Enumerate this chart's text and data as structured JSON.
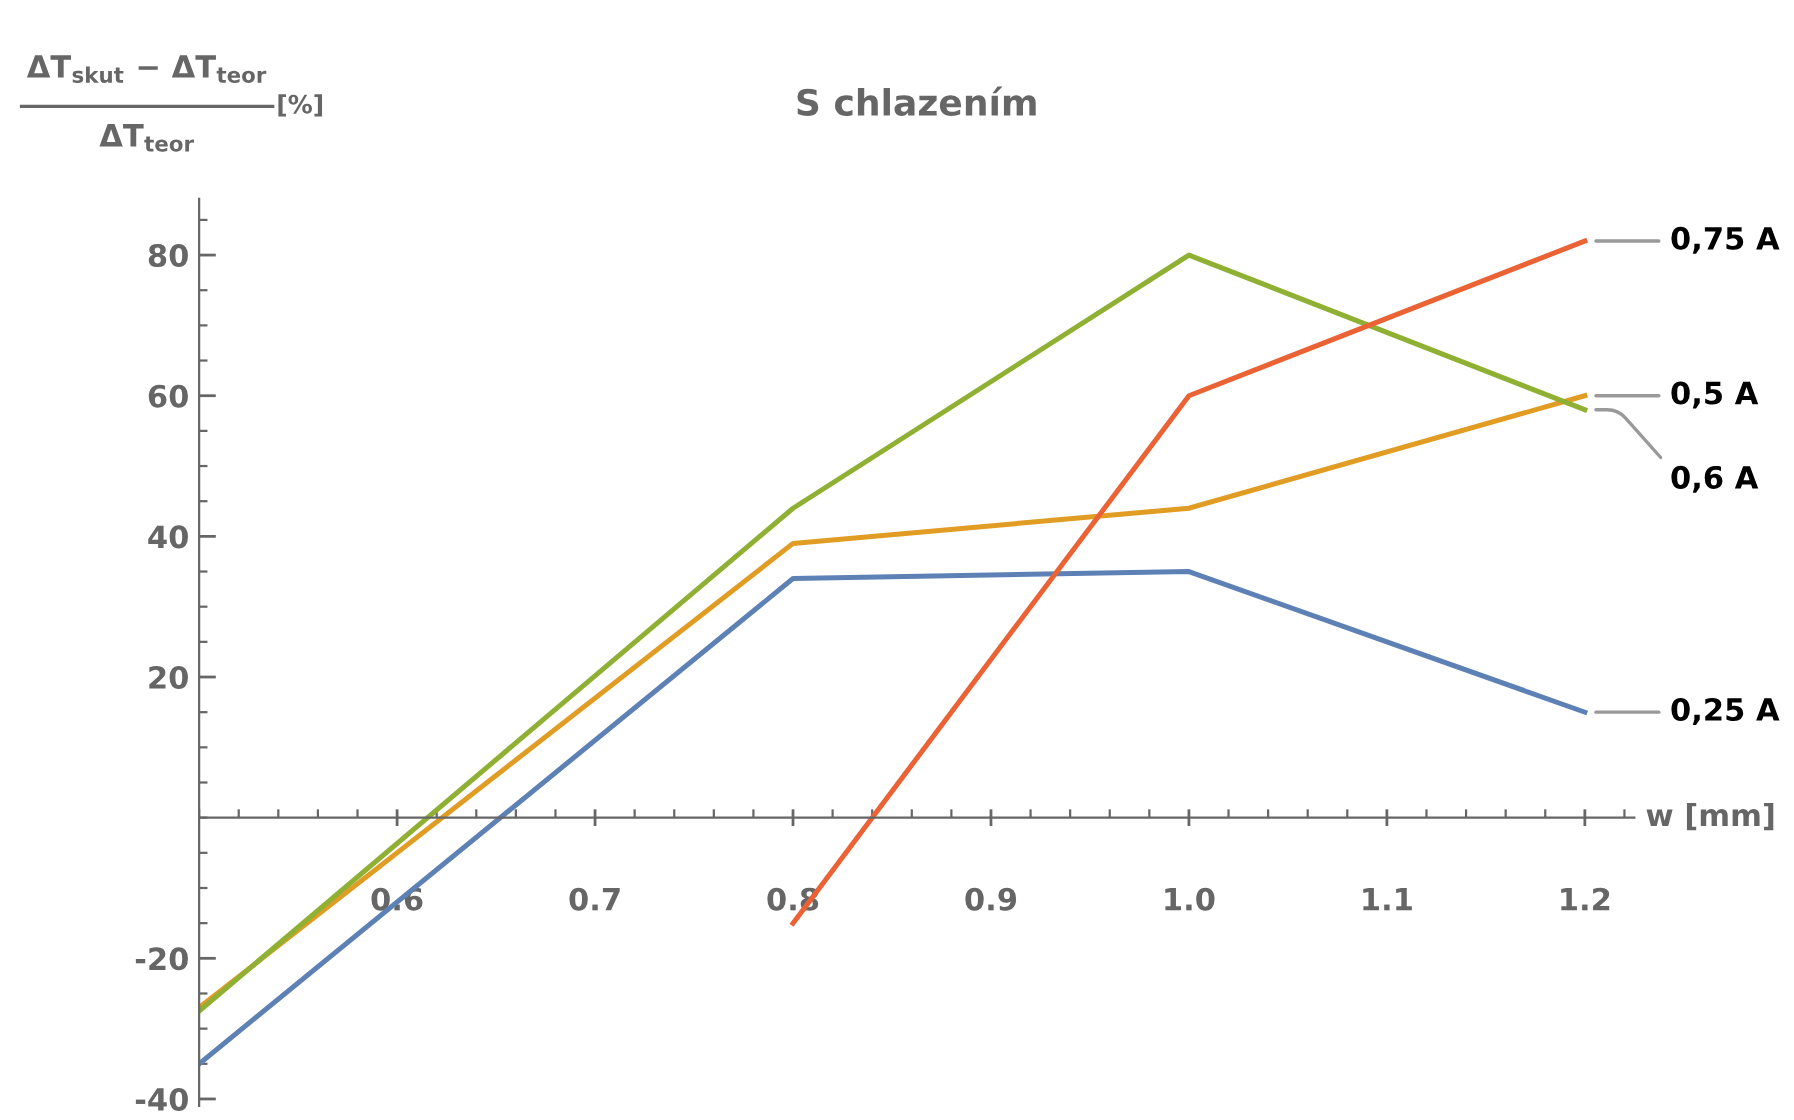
{
  "chart_data": {
    "type": "line",
    "title": "S chlazením",
    "ylabel": "ΔT$_{skut}$ − ΔT$_{teor}$\nΔT$_{teor}$\n[%]",
    "xlabel": "w [mm]",
    "x": [
      0.5,
      0.8,
      1.0,
      1.2
    ],
    "series": [
      {
        "name": "0,25 A",
        "color": "#5e81b5",
        "values": [
          -35,
          34,
          35,
          15
        ]
      },
      {
        "name": "0,5 A",
        "color": "#e19c24",
        "values": [
          -27,
          39,
          44,
          60
        ]
      },
      {
        "name": "0,6 A",
        "color": "#8fb032",
        "values": [
          -27.5,
          44,
          80,
          58
        ]
      },
      {
        "name": "0,75 A",
        "color": "#eb6235",
        "values": [
          null,
          -15,
          60,
          82
        ]
      }
    ],
    "xlim": [
      0.5,
      1.225
    ],
    "ylim": [
      -41,
      88
    ],
    "xticks": [
      0.6,
      0.7,
      0.8,
      0.9,
      {
        "value": 1.0,
        "label": "1.0"
      },
      1.1,
      1.2
    ],
    "yticks": [
      -40,
      -20,
      20,
      40,
      60,
      80
    ],
    "grid": false,
    "legend": false,
    "marker": "none",
    "line_style": "solid"
  }
}
